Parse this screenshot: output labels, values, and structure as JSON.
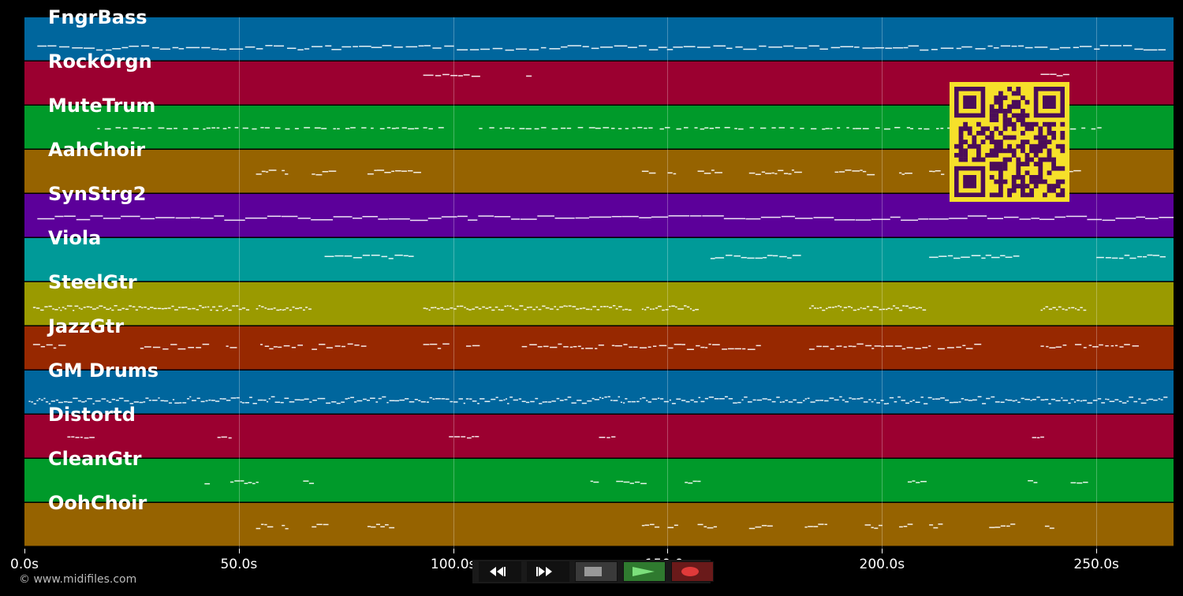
{
  "tracks": [
    {
      "name": "FngrBass",
      "color": "#00669d",
      "pattern": "line"
    },
    {
      "name": "RockOrgn",
      "color": "#9b0030",
      "pattern": "sparse"
    },
    {
      "name": "MuteTrum",
      "color": "#009a2a",
      "pattern": "dashes"
    },
    {
      "name": "AahChoir",
      "color": "#966300",
      "pattern": "clusters"
    },
    {
      "name": "SynStrg2",
      "color": "#5c009a",
      "pattern": "dense"
    },
    {
      "name": "Viola",
      "color": "#009a98",
      "pattern": "phrases"
    },
    {
      "name": "SteelGtr",
      "color": "#9a9a00",
      "pattern": "ticks"
    },
    {
      "name": "JazzGtr",
      "color": "#972800",
      "pattern": "riffs"
    },
    {
      "name": "GM Drums",
      "color": "#00669d",
      "pattern": "drums"
    },
    {
      "name": "Distortd",
      "color": "#9b0030",
      "pattern": "rare"
    },
    {
      "name": "CleanGtr",
      "color": "#009a2a",
      "pattern": "rare2"
    },
    {
      "name": "OohChoir",
      "color": "#966300",
      "pattern": "clusters2"
    }
  ],
  "timeline": {
    "max_seconds": 268,
    "ticks": [
      {
        "value": 0,
        "label": "0.0s"
      },
      {
        "value": 50,
        "label": "50.0s"
      },
      {
        "value": 100,
        "label": "100.0s"
      },
      {
        "value": 150,
        "label": "150.0s"
      },
      {
        "value": 200,
        "label": "200.0s"
      },
      {
        "value": 250,
        "label": "250.0s"
      }
    ]
  },
  "footer": {
    "copyright": "© www.midifiles.com"
  },
  "controls": [
    {
      "name": "rewind-button",
      "icon": "rewind-icon",
      "bg": "#111111"
    },
    {
      "name": "fast-forward-button",
      "icon": "fast-forward-icon",
      "bg": "#111111"
    },
    {
      "name": "stop-button",
      "icon": "stop-icon",
      "bg": "#3a3a3a"
    },
    {
      "name": "play-button",
      "icon": "play-icon",
      "bg": "#2f7a2f"
    },
    {
      "name": "record-button",
      "icon": "record-icon",
      "bg": "#6a1a1a"
    }
  ]
}
